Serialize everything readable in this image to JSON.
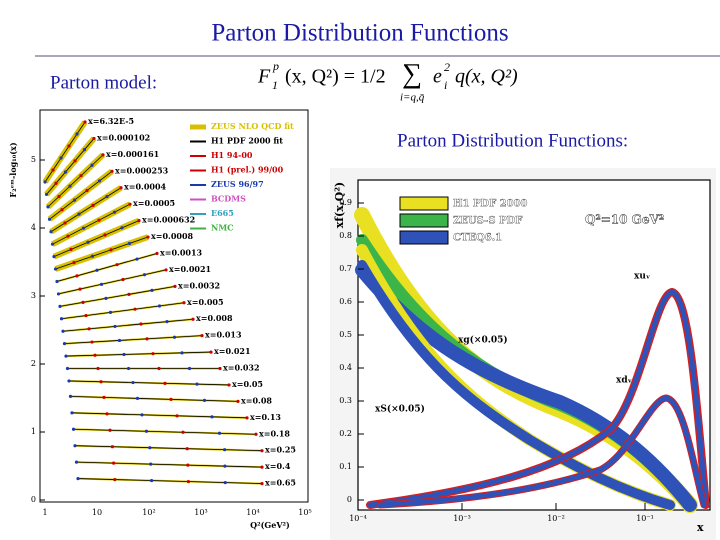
{
  "header": {
    "title": "Parton Distribution Functions"
  },
  "body": {
    "left_caption": "Parton model:",
    "right_caption": "Parton Distribution Functions:"
  },
  "formula": {
    "F": "F",
    "sub": "1",
    "sup": "p",
    "lhs": "(x, Q²) = 1/2",
    "sum": "∑",
    "sum_under": "i=q,q̄",
    "e": "e",
    "e_sub": "i",
    "e_sup": "2",
    "rhs": "q(x, Q²)"
  },
  "left_figure": {
    "y_label": "F₂ᵉᵐ-log₁₀(x)",
    "x_label": "Q²(GeV²)",
    "y_ticks": [
      "0",
      "1",
      "2",
      "3",
      "4",
      "5"
    ],
    "x_ticks": [
      "1",
      "10",
      "10²",
      "10³",
      "10⁴",
      "10⁵"
    ],
    "legend": [
      "ZEUS NLO QCD fit",
      "H1 PDF 2000 fit",
      "H1 94-00",
      "H1 (prel.) 99/00",
      "ZEUS 96/97",
      "BCDMS",
      "E665",
      "NMC"
    ],
    "bin_labels": [
      "x=6.32E-5",
      "x=0.000102",
      "x=0.000161",
      "x=0.000253",
      "x=0.0004",
      "x=0.0005",
      "x=0.000632",
      "x=0.0008",
      "x=0.0013",
      "x=0.0021",
      "x=0.0032",
      "x=0.005",
      "x=0.008",
      "x=0.013",
      "x=0.021",
      "x=0.032",
      "x=0.05",
      "x=0.08",
      "x=0.13",
      "x=0.18",
      "x=0.25",
      "x=0.4",
      "x=0.65"
    ]
  },
  "right_figure": {
    "y_label": "xf(x,Q²)",
    "x_label": "x",
    "y_ticks": [
      "0",
      "0.1",
      "0.2",
      "0.3",
      "0.4",
      "0.5",
      "0.6",
      "0.7",
      "0.8",
      "0.9"
    ],
    "x_ticks": [
      "10⁻⁴",
      "10⁻³",
      "10⁻²",
      "10⁻¹"
    ],
    "legend": [
      "H1 PDF 2000",
      "ZEUS-S PDF",
      "CTEQ6.1"
    ],
    "scale_note": "Q²=10 GeV²",
    "curve_labels": [
      "xuᵥ",
      "xdᵥ",
      "xg(×0.05)",
      "xS(×0.05)"
    ]
  }
}
